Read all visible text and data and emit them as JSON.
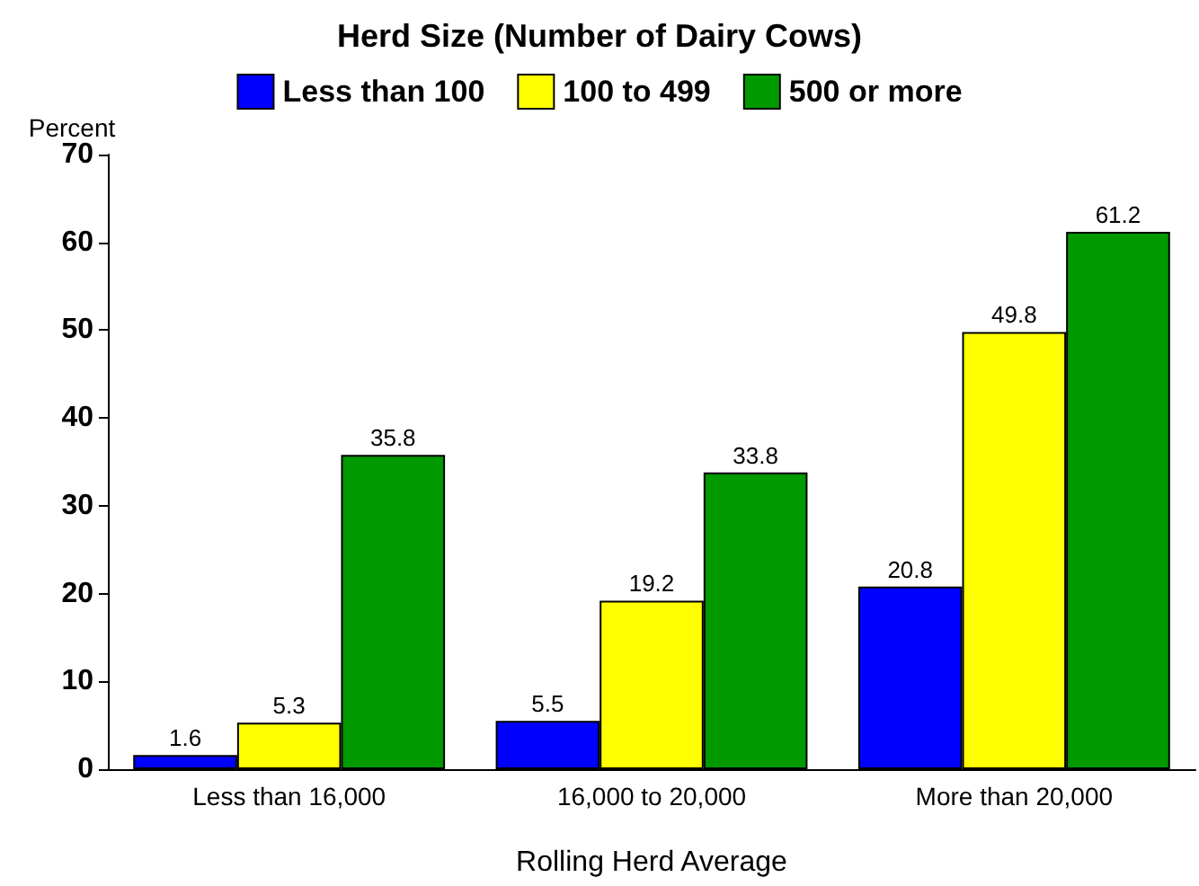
{
  "chart_data": {
    "type": "bar",
    "title": "Herd Size (Number of Dairy Cows)",
    "xlabel": "Rolling Herd Average",
    "ylabel": "Percent",
    "categories": [
      "Less than 16,000",
      "16,000 to 20,000",
      "More than 20,000"
    ],
    "series": [
      {
        "name": "Less than 100",
        "color": "#0000ff",
        "values": [
          1.6,
          5.5,
          20.8
        ]
      },
      {
        "name": "100 to 499",
        "color": "#ffff00",
        "values": [
          5.3,
          19.2,
          49.8
        ]
      },
      {
        "name": "500 or more",
        "color": "#009900",
        "values": [
          35.8,
          33.8,
          61.2
        ]
      }
    ],
    "ylim": [
      0,
      70
    ],
    "yticks": [
      0,
      10,
      20,
      30,
      40,
      50,
      60,
      70
    ],
    "grid": false,
    "legend": "top",
    "data_labels": true
  }
}
